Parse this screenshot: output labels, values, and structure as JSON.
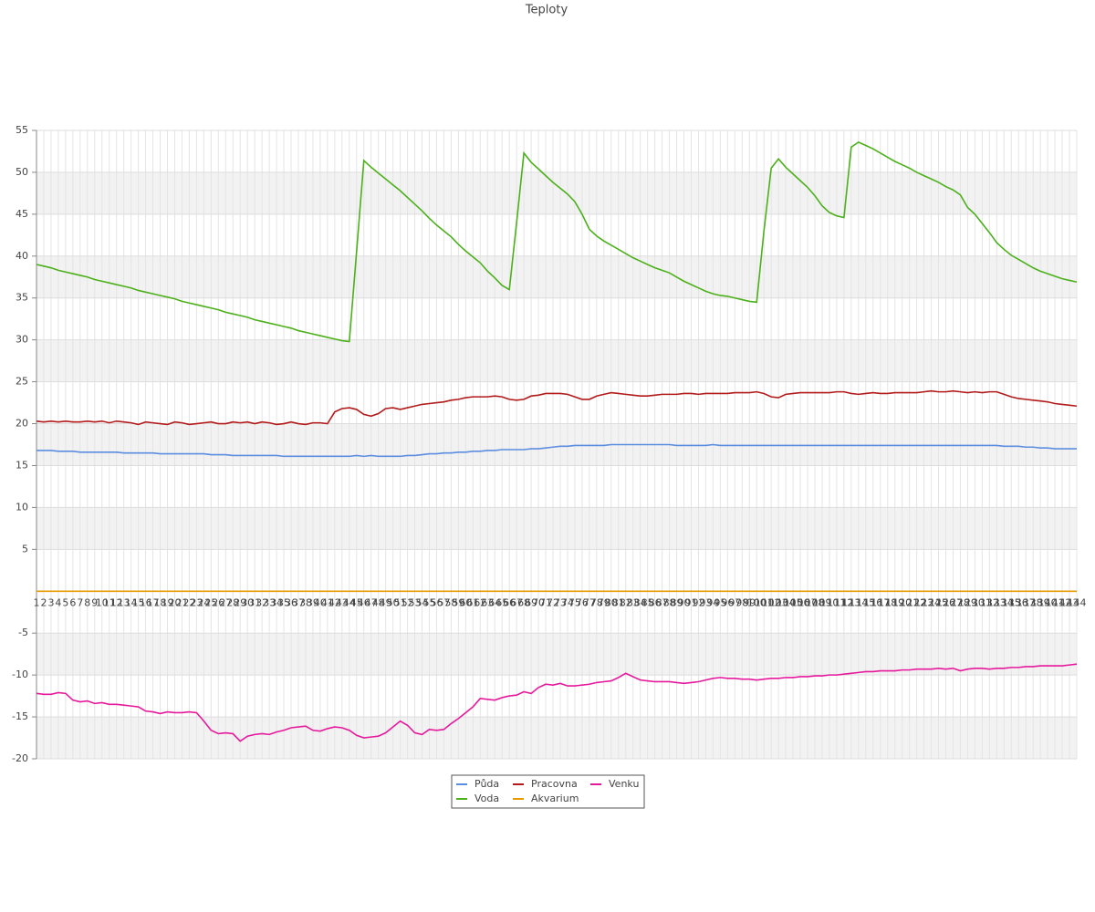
{
  "chart_data": {
    "type": "line",
    "title": "Teploty",
    "categories": [
      "1",
      "2",
      "3",
      "4",
      "5",
      "6",
      "7",
      "8",
      "9",
      "10",
      "11",
      "12",
      "13",
      "14",
      "15",
      "16",
      "17",
      "18",
      "19",
      "20",
      "21",
      "22",
      "23",
      "24",
      "25",
      "26",
      "27",
      "28",
      "29",
      "30",
      "31",
      "32",
      "33",
      "34",
      "35",
      "36",
      "37",
      "38",
      "39",
      "40",
      "41",
      "42",
      "43",
      "44",
      "45",
      "46",
      "47",
      "48",
      "49",
      "50",
      "51",
      "52",
      "53",
      "54",
      "55",
      "56",
      "57",
      "58",
      "59",
      "60",
      "61",
      "62",
      "63",
      "64",
      "65",
      "66",
      "67",
      "68",
      "69",
      "70",
      "71",
      "72",
      "73",
      "74",
      "75",
      "76",
      "77",
      "78",
      "79",
      "80",
      "81",
      "82",
      "83",
      "84",
      "85",
      "86",
      "87",
      "88",
      "89",
      "90",
      "91",
      "92",
      "93",
      "94",
      "95",
      "96",
      "97",
      "98",
      "99",
      "100",
      "101",
      "102",
      "103",
      "104",
      "105",
      "106",
      "107",
      "108",
      "109",
      "110",
      "111",
      "112",
      "113",
      "114",
      "115",
      "116",
      "117",
      "118",
      "119",
      "120",
      "121",
      "122",
      "123",
      "124",
      "125",
      "126",
      "127",
      "128",
      "129",
      "130",
      "131",
      "132",
      "133",
      "134",
      "135",
      "136",
      "137",
      "138",
      "139",
      "140",
      "141",
      "142",
      "143",
      "144"
    ],
    "series": [
      {
        "name": "Půda",
        "color": "#5b8de0",
        "values": [
          16.8,
          16.8,
          16.8,
          16.7,
          16.7,
          16.7,
          16.6,
          16.6,
          16.6,
          16.6,
          16.6,
          16.6,
          16.5,
          16.5,
          16.5,
          16.5,
          16.5,
          16.4,
          16.4,
          16.4,
          16.4,
          16.4,
          16.4,
          16.4,
          16.3,
          16.3,
          16.3,
          16.2,
          16.2,
          16.2,
          16.2,
          16.2,
          16.2,
          16.2,
          16.1,
          16.1,
          16.1,
          16.1,
          16.1,
          16.1,
          16.1,
          16.1,
          16.1,
          16.1,
          16.2,
          16.1,
          16.2,
          16.1,
          16.1,
          16.1,
          16.1,
          16.2,
          16.2,
          16.3,
          16.4,
          16.4,
          16.5,
          16.5,
          16.6,
          16.6,
          16.7,
          16.7,
          16.8,
          16.8,
          16.9,
          16.9,
          16.9,
          16.9,
          17.0,
          17.0,
          17.1,
          17.2,
          17.3,
          17.3,
          17.4,
          17.4,
          17.4,
          17.4,
          17.4,
          17.5,
          17.5,
          17.5,
          17.5,
          17.5,
          17.5,
          17.5,
          17.5,
          17.5,
          17.4,
          17.4,
          17.4,
          17.4,
          17.4,
          17.5,
          17.4,
          17.4,
          17.4,
          17.4,
          17.4,
          17.4,
          17.4,
          17.4,
          17.4,
          17.4,
          17.4,
          17.4,
          17.4,
          17.4,
          17.4,
          17.4,
          17.4,
          17.4,
          17.4,
          17.4,
          17.4,
          17.4,
          17.4,
          17.4,
          17.4,
          17.4,
          17.4,
          17.4,
          17.4,
          17.4,
          17.4,
          17.4,
          17.4,
          17.4,
          17.4,
          17.4,
          17.4,
          17.4,
          17.4,
          17.3,
          17.3,
          17.3,
          17.2,
          17.2,
          17.1,
          17.1,
          17.0,
          17.0,
          17.0,
          17.0
        ]
      },
      {
        "name": "Voda",
        "color": "#4cb01a",
        "values": [
          39.0,
          38.8,
          38.6,
          38.3,
          38.1,
          37.9,
          37.7,
          37.5,
          37.2,
          37.0,
          36.8,
          36.6,
          36.4,
          36.2,
          35.9,
          35.7,
          35.5,
          35.3,
          35.1,
          34.9,
          34.6,
          34.4,
          34.2,
          34.0,
          33.8,
          33.6,
          33.3,
          33.1,
          32.9,
          32.7,
          32.4,
          32.2,
          32.0,
          31.8,
          31.6,
          31.4,
          31.1,
          30.9,
          30.7,
          30.5,
          30.3,
          30.1,
          29.9,
          29.8,
          40.5,
          51.4,
          50.6,
          49.9,
          49.2,
          48.5,
          47.8,
          47.0,
          46.2,
          45.4,
          44.5,
          43.7,
          43.0,
          42.3,
          41.4,
          40.6,
          39.9,
          39.2,
          38.2,
          37.4,
          36.5,
          36.0,
          44.0,
          52.3,
          51.2,
          50.4,
          49.6,
          48.8,
          48.1,
          47.4,
          46.5,
          45.0,
          43.2,
          42.4,
          41.8,
          41.3,
          40.8,
          40.3,
          39.8,
          39.4,
          39.0,
          38.6,
          38.3,
          38.0,
          37.5,
          37.0,
          36.6,
          36.2,
          35.8,
          35.5,
          35.3,
          35.2,
          35.0,
          34.8,
          34.6,
          34.5,
          43.0,
          50.5,
          51.6,
          50.6,
          49.8,
          49.0,
          48.2,
          47.2,
          46.0,
          45.2,
          44.8,
          44.6,
          53.0,
          53.6,
          53.2,
          52.8,
          52.3,
          51.8,
          51.3,
          50.9,
          50.5,
          50.0,
          49.6,
          49.2,
          48.8,
          48.3,
          47.9,
          47.3,
          45.8,
          45.0,
          43.9,
          42.8,
          41.6,
          40.8,
          40.1,
          39.6,
          39.1,
          38.6,
          38.2,
          37.9,
          37.6,
          37.3,
          37.1,
          36.9
        ]
      },
      {
        "name": "Pracovna",
        "color": "#b31b1b",
        "values": [
          20.3,
          20.2,
          20.3,
          20.2,
          20.3,
          20.2,
          20.2,
          20.3,
          20.2,
          20.3,
          20.1,
          20.3,
          20.2,
          20.1,
          19.9,
          20.2,
          20.1,
          20.0,
          19.9,
          20.2,
          20.1,
          19.9,
          20.0,
          20.1,
          20.2,
          20.0,
          20.0,
          20.2,
          20.1,
          20.2,
          20.0,
          20.2,
          20.1,
          19.9,
          20.0,
          20.2,
          20.0,
          19.9,
          20.1,
          20.1,
          20.0,
          21.4,
          21.8,
          21.9,
          21.7,
          21.1,
          20.9,
          21.2,
          21.8,
          21.9,
          21.7,
          21.9,
          22.1,
          22.3,
          22.4,
          22.5,
          22.6,
          22.8,
          22.9,
          23.1,
          23.2,
          23.2,
          23.2,
          23.3,
          23.2,
          22.9,
          22.8,
          22.9,
          23.3,
          23.4,
          23.6,
          23.6,
          23.6,
          23.5,
          23.2,
          22.9,
          22.9,
          23.3,
          23.5,
          23.7,
          23.6,
          23.5,
          23.4,
          23.3,
          23.3,
          23.4,
          23.5,
          23.5,
          23.5,
          23.6,
          23.6,
          23.5,
          23.6,
          23.6,
          23.6,
          23.6,
          23.7,
          23.7,
          23.7,
          23.8,
          23.6,
          23.2,
          23.1,
          23.5,
          23.6,
          23.7,
          23.7,
          23.7,
          23.7,
          23.7,
          23.8,
          23.8,
          23.6,
          23.5,
          23.6,
          23.7,
          23.6,
          23.6,
          23.7,
          23.7,
          23.7,
          23.7,
          23.8,
          23.9,
          23.8,
          23.8,
          23.9,
          23.8,
          23.7,
          23.8,
          23.7,
          23.8,
          23.8,
          23.5,
          23.2,
          23.0,
          22.9,
          22.8,
          22.7,
          22.6,
          22.4,
          22.3,
          22.2,
          22.1
        ]
      },
      {
        "name": "Akvarium",
        "color": "#e69b00",
        "values": [
          0,
          0,
          0,
          0,
          0,
          0,
          0,
          0,
          0,
          0,
          0,
          0,
          0,
          0,
          0,
          0,
          0,
          0,
          0,
          0,
          0,
          0,
          0,
          0,
          0,
          0,
          0,
          0,
          0,
          0,
          0,
          0,
          0,
          0,
          0,
          0,
          0,
          0,
          0,
          0,
          0,
          0,
          0,
          0,
          0,
          0,
          0,
          0,
          0,
          0,
          0,
          0,
          0,
          0,
          0,
          0,
          0,
          0,
          0,
          0,
          0,
          0,
          0,
          0,
          0,
          0,
          0,
          0,
          0,
          0,
          0,
          0,
          0,
          0,
          0,
          0,
          0,
          0,
          0,
          0,
          0,
          0,
          0,
          0,
          0,
          0,
          0,
          0,
          0,
          0,
          0,
          0,
          0,
          0,
          0,
          0,
          0,
          0,
          0,
          0,
          0,
          0,
          0,
          0,
          0,
          0,
          0,
          0,
          0,
          0,
          0,
          0,
          0,
          0,
          0,
          0,
          0,
          0,
          0,
          0,
          0,
          0,
          0,
          0,
          0,
          0,
          0,
          0,
          0,
          0,
          0,
          0,
          0,
          0,
          0,
          0,
          0,
          0,
          0,
          0,
          0,
          0,
          0,
          0
        ]
      },
      {
        "name": "Venku",
        "color": "#e6199d",
        "values": [
          -12.2,
          -12.3,
          -12.3,
          -12.1,
          -12.2,
          -13.0,
          -13.2,
          -13.1,
          -13.4,
          -13.3,
          -13.5,
          -13.5,
          -13.6,
          -13.7,
          -13.8,
          -14.3,
          -14.4,
          -14.6,
          -14.4,
          -14.5,
          -14.5,
          -14.4,
          -14.5,
          -15.5,
          -16.6,
          -17.0,
          -16.9,
          -17.0,
          -17.9,
          -17.3,
          -17.1,
          -17.0,
          -17.1,
          -16.8,
          -16.6,
          -16.3,
          -16.2,
          -16.1,
          -16.6,
          -16.7,
          -16.4,
          -16.2,
          -16.3,
          -16.6,
          -17.2,
          -17.5,
          -17.4,
          -17.3,
          -16.9,
          -16.2,
          -15.5,
          -16.0,
          -16.9,
          -17.1,
          -16.5,
          -16.6,
          -16.5,
          -15.8,
          -15.2,
          -14.5,
          -13.8,
          -12.8,
          -12.9,
          -13.0,
          -12.7,
          -12.5,
          -12.4,
          -12.0,
          -12.2,
          -11.5,
          -11.1,
          -11.2,
          -11.0,
          -11.3,
          -11.3,
          -11.2,
          -11.1,
          -10.9,
          -10.8,
          -10.7,
          -10.3,
          -9.8,
          -10.2,
          -10.6,
          -10.7,
          -10.8,
          -10.8,
          -10.8,
          -10.9,
          -11.0,
          -10.9,
          -10.8,
          -10.6,
          -10.4,
          -10.3,
          -10.4,
          -10.4,
          -10.5,
          -10.5,
          -10.6,
          -10.5,
          -10.4,
          -10.4,
          -10.3,
          -10.3,
          -10.2,
          -10.2,
          -10.1,
          -10.1,
          -10.0,
          -10.0,
          -9.9,
          -9.8,
          -9.7,
          -9.6,
          -9.6,
          -9.5,
          -9.5,
          -9.5,
          -9.4,
          -9.4,
          -9.3,
          -9.3,
          -9.3,
          -9.2,
          -9.3,
          -9.2,
          -9.5,
          -9.3,
          -9.2,
          -9.2,
          -9.3,
          -9.2,
          -9.2,
          -9.1,
          -9.1,
          -9.0,
          -9.0,
          -8.9,
          -8.9,
          -8.9,
          -8.9,
          -8.8,
          -8.7
        ]
      }
    ],
    "ylim": [
      -20,
      55
    ],
    "yticks": [
      -20,
      -15,
      -10,
      -5,
      5,
      10,
      15,
      20,
      25,
      30,
      35,
      40,
      45,
      50,
      55
    ],
    "grid": true,
    "legend": "bottom"
  }
}
